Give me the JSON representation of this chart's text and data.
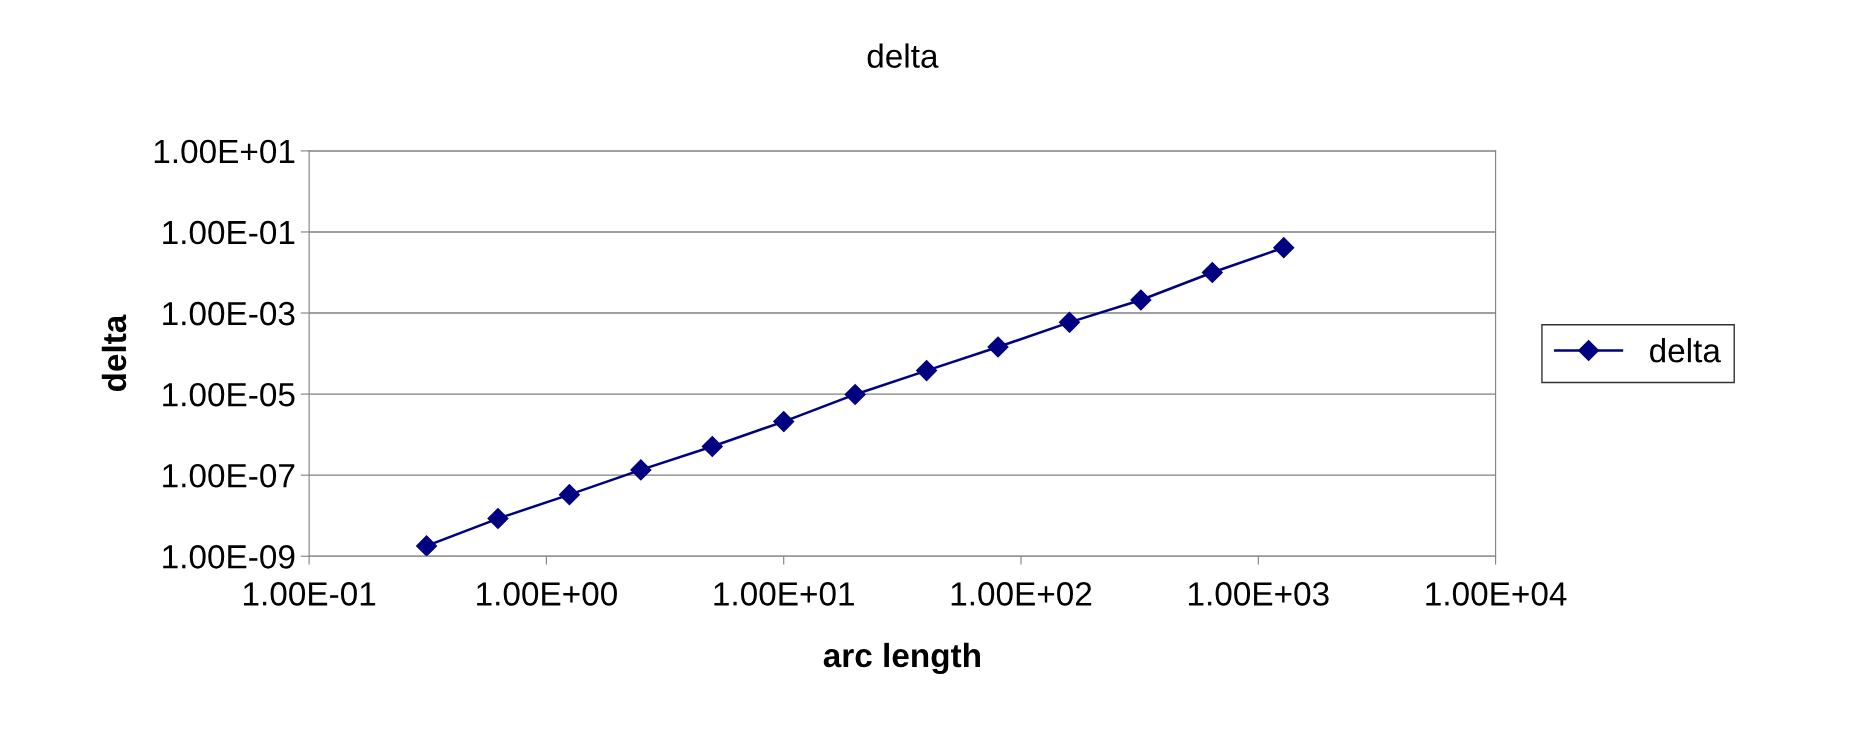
{
  "chart_data": {
    "type": "line",
    "title": "delta",
    "xlabel": "arc length",
    "ylabel": "delta",
    "log": "xy",
    "grid": "y",
    "legend": "right",
    "marker": "diamond",
    "line_style": "solid",
    "x": [
      0.3125,
      0.625,
      1.25,
      2.5,
      5,
      10,
      20,
      40,
      80,
      160,
      320,
      640,
      1280
    ],
    "series": [
      {
        "name": "delta",
        "color": "#000080",
        "values": [
          1.8e-09,
          8.5e-09,
          3.3e-08,
          1.35e-07,
          5.1e-07,
          2.1e-06,
          9.8e-06,
          3.8e-05,
          0.000145,
          0.00059,
          0.0021,
          0.01,
          0.041
        ]
      }
    ],
    "xlim": [
      0.1,
      10000
    ],
    "xticks": [
      {
        "value": 0.1,
        "label": "1.00E-01"
      },
      {
        "value": 1,
        "label": "1.00E+00"
      },
      {
        "value": 10,
        "label": "1.00E+01"
      },
      {
        "value": 100,
        "label": "1.00E+02"
      },
      {
        "value": 1000,
        "label": "1.00E+03"
      },
      {
        "value": 10000,
        "label": "1.00E+04"
      }
    ],
    "ylim": [
      1e-09,
      10
    ],
    "yticks": [
      {
        "value": 1e-09,
        "label": "1.00E-09"
      },
      {
        "value": 1e-07,
        "label": "1.00E-07"
      },
      {
        "value": 1e-05,
        "label": "1.00E-05"
      },
      {
        "value": 0.001,
        "label": "1.00E-03"
      },
      {
        "value": 0.1,
        "label": "1.00E-01"
      },
      {
        "value": 10,
        "label": "1.00E+01"
      }
    ]
  }
}
